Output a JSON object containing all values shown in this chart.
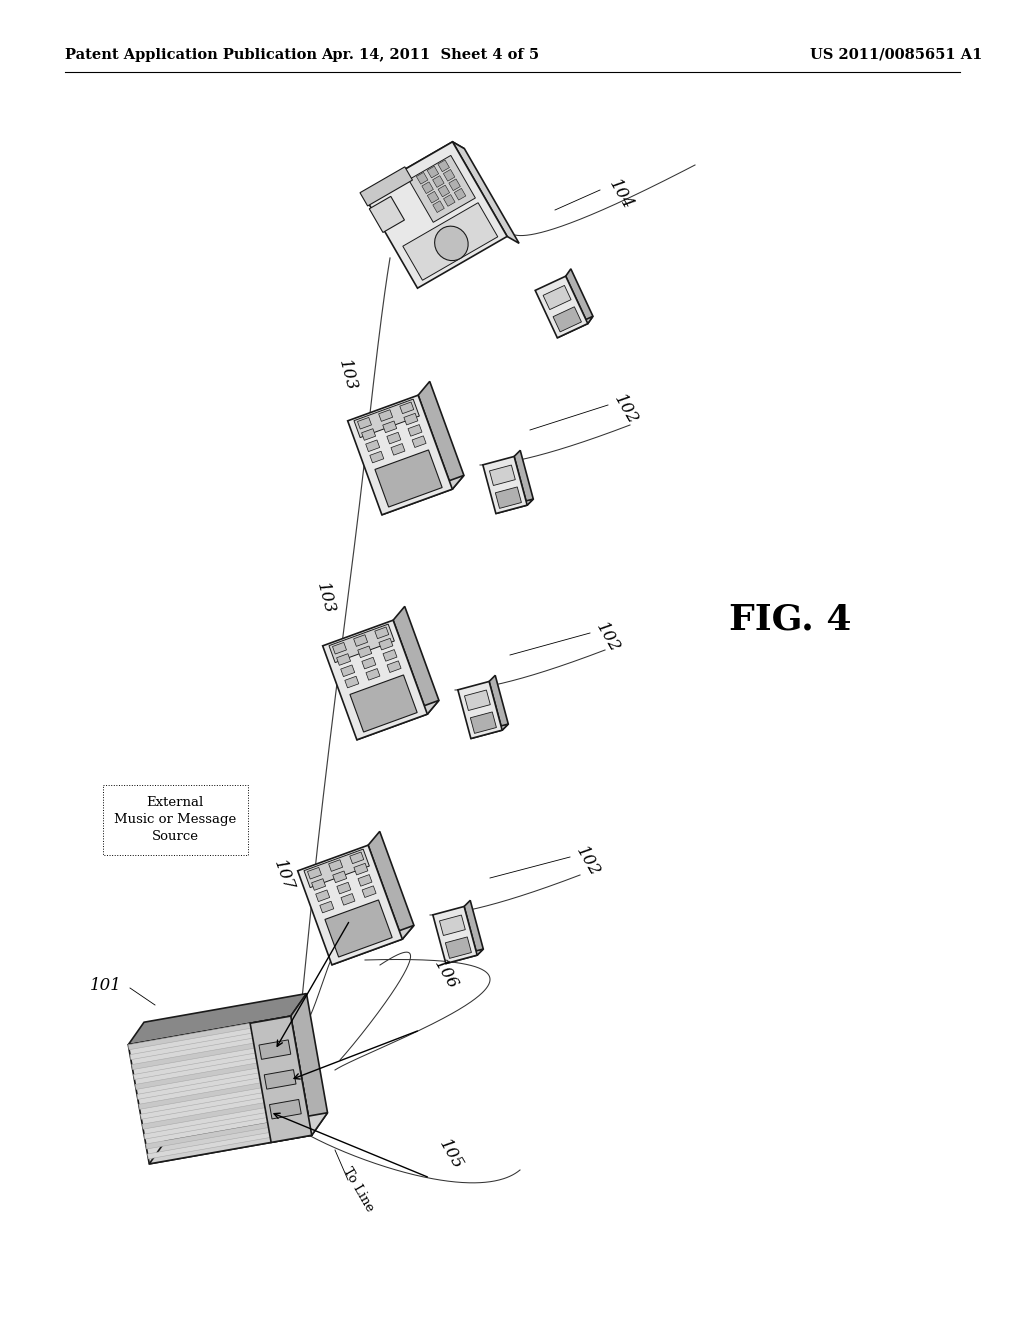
{
  "background_color": "#ffffff",
  "header_left": "Patent Application Publication",
  "header_mid": "Apr. 14, 2011  Sheet 4 of 5",
  "header_right": "US 2011/0085651 A1",
  "fig_label": "FIG. 4",
  "header_fontsize": 10.5,
  "label_fontsize": 12,
  "fig_label_fontsize": 26,
  "line_color": "#1a1a1a",
  "fill_light": "#e8e8e8",
  "fill_mid": "#d0d0d0",
  "fill_dark": "#b0b0b0",
  "fill_vdark": "#888888"
}
